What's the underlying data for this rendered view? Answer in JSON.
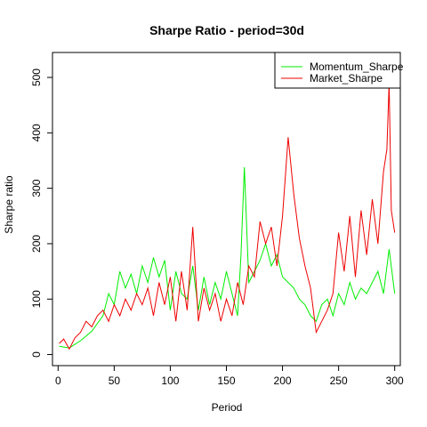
{
  "chart_data": {
    "type": "line",
    "title": "Sharpe Ratio - period=30d",
    "xlabel": "Period",
    "ylabel": "Sharpe ratio",
    "xlim": [
      -5,
      305
    ],
    "ylim": [
      -20,
      545
    ],
    "x_ticks": [
      0,
      50,
      100,
      150,
      200,
      250,
      300
    ],
    "y_ticks": [
      0,
      100,
      200,
      300,
      400,
      500
    ],
    "legend_position": "top-right",
    "grid": false,
    "series": [
      {
        "name": "Momentum_Sharpe",
        "color": "#00ee00",
        "x": [
          1,
          10,
          20,
          30,
          40,
          45,
          50,
          55,
          60,
          65,
          70,
          75,
          80,
          85,
          90,
          95,
          100,
          105,
          110,
          115,
          120,
          125,
          130,
          135,
          140,
          145,
          150,
          155,
          160,
          163,
          166,
          170,
          175,
          180,
          185,
          190,
          195,
          200,
          205,
          210,
          215,
          220,
          225,
          230,
          235,
          240,
          245,
          250,
          255,
          260,
          265,
          270,
          275,
          280,
          285,
          290,
          295,
          300
        ],
        "values": [
          15,
          12,
          25,
          42,
          70,
          110,
          90,
          150,
          120,
          145,
          110,
          160,
          130,
          175,
          140,
          170,
          80,
          150,
          110,
          100,
          160,
          80,
          140,
          90,
          130,
          100,
          150,
          110,
          70,
          180,
          338,
          130,
          150,
          170,
          200,
          160,
          180,
          140,
          130,
          120,
          100,
          90,
          70,
          60,
          90,
          100,
          70,
          110,
          90,
          130,
          100,
          120,
          110,
          130,
          150,
          110,
          190,
          110
        ]
      },
      {
        "name": "Market_Sharpe",
        "color": "#ee0000",
        "x": [
          1,
          5,
          10,
          15,
          20,
          25,
          30,
          35,
          40,
          45,
          50,
          55,
          60,
          65,
          70,
          75,
          80,
          85,
          90,
          95,
          100,
          105,
          110,
          115,
          120,
          125,
          130,
          135,
          140,
          145,
          150,
          155,
          160,
          165,
          170,
          175,
          180,
          185,
          190,
          195,
          200,
          205,
          210,
          215,
          220,
          225,
          230,
          235,
          240,
          245,
          250,
          255,
          260,
          265,
          270,
          275,
          280,
          285,
          290,
          293,
          295,
          297,
          300
        ],
        "values": [
          20,
          28,
          10,
          30,
          40,
          60,
          50,
          70,
          80,
          60,
          90,
          70,
          100,
          80,
          110,
          90,
          120,
          70,
          130,
          90,
          140,
          60,
          150,
          80,
          230,
          60,
          120,
          80,
          110,
          60,
          100,
          70,
          130,
          90,
          160,
          140,
          240,
          200,
          230,
          160,
          250,
          392,
          290,
          210,
          160,
          120,
          40,
          60,
          80,
          110,
          220,
          150,
          250,
          140,
          260,
          180,
          280,
          200,
          330,
          370,
          490,
          260,
          220
        ]
      }
    ]
  }
}
